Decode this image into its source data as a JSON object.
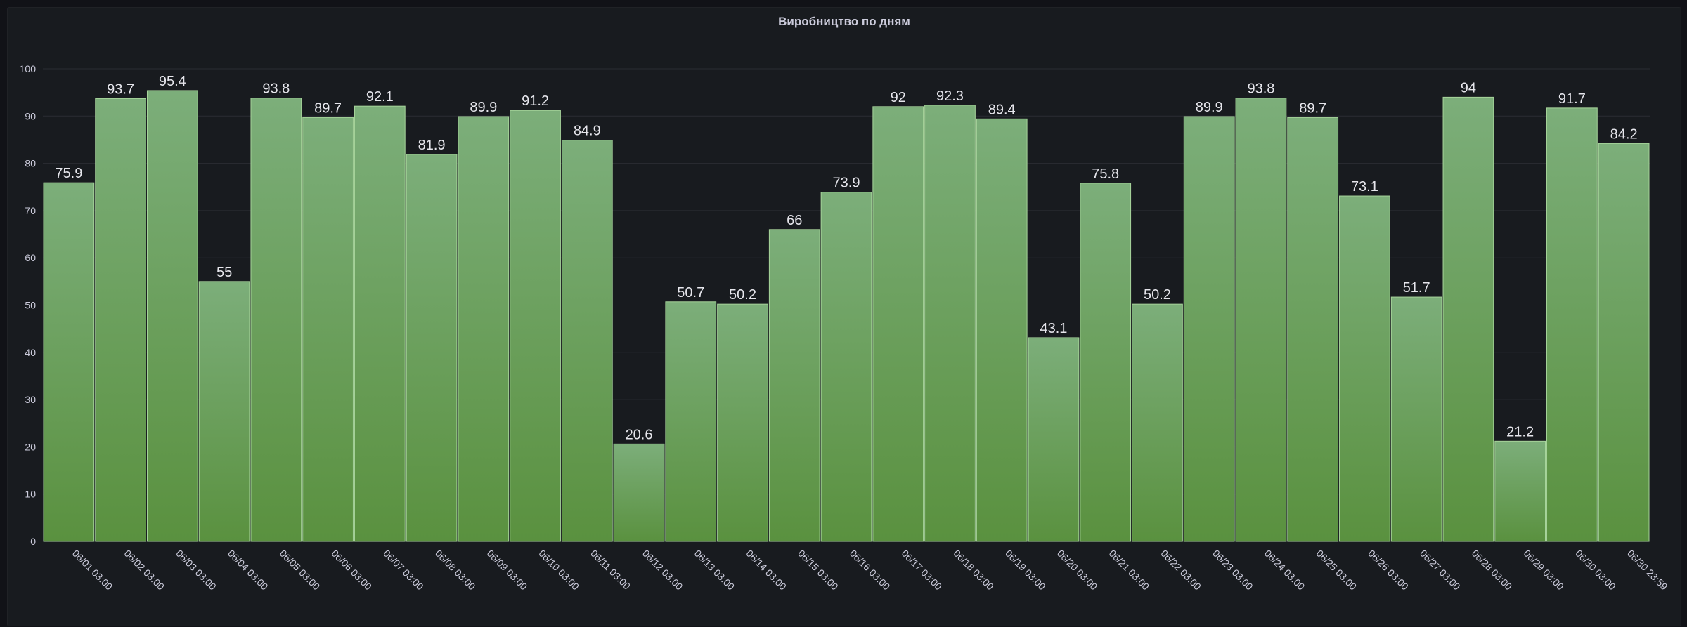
{
  "panel": {
    "title": "Виробництво по дням"
  },
  "chart_data": {
    "type": "bar",
    "title": "Виробництво по дням",
    "xlabel": "",
    "ylabel": "",
    "ylim": [
      0,
      100
    ],
    "yticks": [
      0,
      10,
      20,
      30,
      40,
      50,
      60,
      70,
      80,
      90,
      100
    ],
    "grid": true,
    "legend": "none",
    "colors": {
      "bar_top": "#7cae7a",
      "bar_bottom": "#5a913f",
      "bar_stroke": "#a7d49b",
      "grid": "#2a2d33",
      "axis_text": "#ccccdc",
      "value_text": "#e6e6ec"
    },
    "categories": [
      "06/01 03:00",
      "06/02 03:00",
      "06/03 03:00",
      "06/04 03:00",
      "06/05 03:00",
      "06/06 03:00",
      "06/07 03:00",
      "06/08 03:00",
      "06/09 03:00",
      "06/10 03:00",
      "06/11 03:00",
      "06/12 03:00",
      "06/13 03:00",
      "06/14 03:00",
      "06/15 03:00",
      "06/16 03:00",
      "06/17 03:00",
      "06/18 03:00",
      "06/19 03:00",
      "06/20 03:00",
      "06/21 03:00",
      "06/22 03:00",
      "06/23 03:00",
      "06/24 03:00",
      "06/25 03:00",
      "06/26 03:00",
      "06/27 03:00",
      "06/28 03:00",
      "06/29 03:00",
      "06/30 03:00",
      "06/30 23:59"
    ],
    "values": [
      75.9,
      93.7,
      95.4,
      55,
      93.8,
      89.7,
      92.1,
      81.9,
      89.9,
      91.2,
      84.9,
      20.6,
      50.7,
      50.2,
      66,
      73.9,
      92,
      92.3,
      89.4,
      43.1,
      75.8,
      50.2,
      89.9,
      93.8,
      89.7,
      73.1,
      51.7,
      94,
      21.2,
      91.7,
      84.2
    ]
  }
}
